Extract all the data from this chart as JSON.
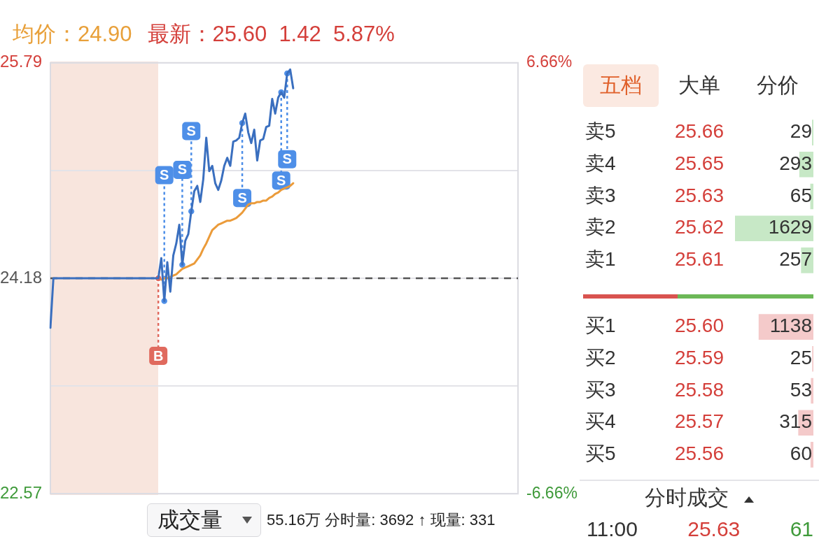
{
  "chart_data": [
    {
      "type": "line",
      "title": "均价：24.90",
      "subtitle": "最新：25.60  1.42  5.87%",
      "categories": [
        null,
        null,
        null,
        null,
        null,
        null,
        null,
        null,
        null,
        null,
        null,
        null,
        null,
        null,
        null,
        null,
        null,
        null,
        null,
        null,
        null,
        null,
        null,
        null,
        null,
        null,
        null,
        null,
        null,
        null,
        null,
        null,
        null,
        null,
        null,
        null,
        null,
        null,
        null,
        null,
        null,
        null,
        null,
        null,
        null,
        null,
        null,
        null,
        null,
        null,
        null,
        null,
        null,
        null,
        null,
        null,
        null,
        null,
        null,
        null,
        null,
        null,
        null,
        null,
        null,
        null,
        null,
        null,
        null,
        null,
        null,
        null,
        null,
        null,
        null,
        null,
        null,
        null,
        null,
        null,
        null,
        null,
        null,
        null,
        null,
        null,
        null,
        null,
        null,
        null,
        null,
        null,
        null,
        null,
        null,
        null,
        null,
        null,
        null,
        null,
        null,
        null,
        null,
        null,
        null,
        null,
        null,
        null,
        null,
        null,
        null,
        null,
        null,
        null,
        null,
        null,
        null,
        null,
        null,
        null,
        null,
        null,
        null,
        null,
        null,
        null,
        null,
        null,
        null,
        null,
        null,
        null,
        null,
        null,
        null,
        null,
        null,
        null,
        null,
        null,
        null,
        null,
        null,
        null,
        null,
        null,
        null,
        null,
        null,
        null,
        null,
        null,
        null,
        null,
        null,
        null,
        null
      ],
      "ylim": [
        22.57,
        25.79
      ],
      "yticks": [
        22.57,
        {
          "value": 23.375,
          "label": null
        },
        24.18,
        {
          "value": 24.985,
          "label": null
        },
        25.79
      ],
      "y2lim": [
        -6.66,
        6.66
      ],
      "y2ticks": [
        {
          "value": -6.66,
          "label": "-6.66%"
        },
        {
          "value": 6.66,
          "label": "6.66%"
        }
      ],
      "tick_labels": "y",
      "grid": "y",
      "legend": false,
      "marker": "none",
      "series": [
        {
          "color": "#3a6fbf",
          "values": [
            23.81,
            24.18,
            24.18,
            24.18,
            24.18,
            24.18,
            24.18,
            24.18,
            24.18,
            24.18,
            24.18,
            24.18,
            24.18,
            24.18,
            24.18,
            24.18,
            24.18,
            24.18,
            24.18,
            24.18,
            24.18,
            24.18,
            24.18,
            24.18,
            24.18,
            24.18,
            24.18,
            24.18,
            24.18,
            24.18,
            24.18,
            24.18,
            24.18,
            24.18,
            24.18,
            24.18,
            24.18,
            24.33,
            24.01,
            24.3,
            24.08,
            24.35,
            24.44,
            24.58,
            24.28,
            24.46,
            24.51,
            24.68,
            24.83,
            24.87,
            24.75,
            24.92,
            25.23,
            24.98,
            25.02,
            24.89,
            24.84,
            24.91,
            25.02,
            25.08,
            25.02,
            25.2,
            25.21,
            25.23,
            25.34,
            25.41,
            25.27,
            25.19,
            25.29,
            25.06,
            25.21,
            25.22,
            25.31,
            25.32,
            25.52,
            25.41,
            25.53,
            25.57,
            25.53,
            25.71,
            25.74,
            25.6,
            null,
            null,
            null,
            null,
            null,
            null,
            null,
            null,
            null,
            null,
            null,
            null,
            null,
            null,
            null,
            null,
            null,
            null,
            null,
            null,
            null,
            null,
            null,
            null,
            null,
            null,
            null,
            null,
            null,
            null,
            null,
            null,
            null,
            null,
            null,
            null,
            null,
            null,
            null,
            null,
            null,
            null,
            null,
            null,
            null,
            null,
            null,
            null,
            null,
            null,
            null,
            null,
            null,
            null,
            null,
            null,
            null,
            null,
            null,
            null,
            null,
            null,
            null,
            null,
            null,
            null,
            null,
            null,
            null,
            null,
            null,
            null,
            null,
            null,
            null
          ]
        },
        {
          "color": "#eb9b3a",
          "values": [
            null,
            null,
            null,
            null,
            null,
            null,
            null,
            null,
            null,
            null,
            null,
            null,
            null,
            null,
            null,
            null,
            null,
            null,
            null,
            null,
            null,
            null,
            null,
            null,
            null,
            null,
            null,
            null,
            null,
            null,
            null,
            null,
            null,
            null,
            null,
            null,
            null,
            24.17,
            24.18,
            24.18,
            24.19,
            24.2,
            24.21,
            24.23,
            24.25,
            24.26,
            24.27,
            24.28,
            24.29,
            24.32,
            24.35,
            24.4,
            24.44,
            24.49,
            24.54,
            24.56,
            24.58,
            24.59,
            24.6,
            24.61,
            24.61,
            24.62,
            24.63,
            24.65,
            24.67,
            24.7,
            24.73,
            24.74,
            24.74,
            24.75,
            24.75,
            24.76,
            24.76,
            24.78,
            24.79,
            24.81,
            24.82,
            24.84,
            24.85,
            24.86,
            24.87,
            24.89,
            null,
            null,
            null,
            null,
            null,
            null,
            null,
            null,
            null,
            null,
            null,
            null,
            null,
            null,
            null,
            null,
            null,
            null,
            null,
            null,
            null,
            null,
            null,
            null,
            null,
            null,
            null,
            null,
            null,
            null,
            null,
            null,
            null,
            null,
            null,
            null,
            null,
            null,
            null,
            null,
            null,
            null,
            null,
            null,
            null,
            null,
            null,
            null,
            null,
            null,
            null,
            null,
            null,
            null,
            null,
            null,
            null,
            null,
            null,
            null,
            null,
            null,
            null,
            null,
            null,
            null,
            null,
            null,
            null,
            null,
            null,
            null,
            null,
            null,
            null
          ]
        }
      ],
      "ref_lines": [
        {
          "axis": "y",
          "value": 24.18,
          "color": "#555555",
          "line_style": "dashed"
        }
      ],
      "annotations": [
        {
          "text": "B",
          "y": 23.6
        },
        {
          "text": "S",
          "y": 24.95
        },
        {
          "text": "S",
          "y": 24.99
        },
        {
          "text": "S",
          "y": 25.28
        },
        {
          "text": "S",
          "y": 24.78
        },
        {
          "text": "S",
          "y": 24.91
        },
        {
          "text": "S",
          "y": 25.07
        },
        "成交量",
        "55.16万 分时量: 3692 ↑ 现量: 331"
      ]
    },
    {
      "type": "other",
      "annotations": [
        "五档",
        "大单",
        "分价"
      ]
    },
    {
      "type": "bar",
      "orientation": "horizontal",
      "tick_labels": "y",
      "categories": [
        "卖5",
        "卖4",
        "卖3",
        "卖2",
        "卖1"
      ],
      "values": [
        29,
        293,
        65,
        1629,
        257
      ],
      "color": "#c7e8c6",
      "data_labels": true,
      "annotations": [
        "25.66",
        "25.65",
        "25.63",
        "25.62",
        "25.61"
      ]
    },
    {
      "type": "bar",
      "orientation": "horizontal",
      "tick_labels": "y",
      "categories": [
        "买1",
        "买2",
        "买3",
        "买4",
        "买5"
      ],
      "values": [
        1138,
        25,
        53,
        315,
        60
      ],
      "color": "#f4caca",
      "data_labels": true,
      "annotations": [
        "25.60",
        "25.59",
        "25.58",
        "25.57",
        "25.56"
      ]
    },
    {
      "type": "other",
      "title": "分时成交",
      "annotations": [
        "11:00",
        "25.63",
        "61"
      ]
    }
  ]
}
